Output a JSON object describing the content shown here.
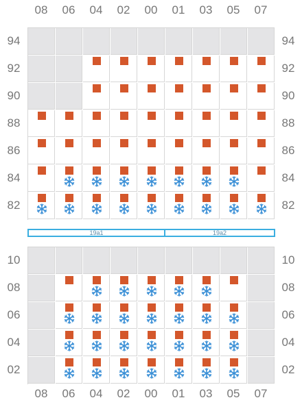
{
  "top": {
    "columns": [
      "08",
      "06",
      "04",
      "02",
      "00",
      "01",
      "03",
      "05",
      "07"
    ],
    "rows": [
      {
        "label": "94",
        "cells": [
          "x",
          "x",
          "x",
          "x",
          "x",
          "x",
          "x",
          "x",
          "x"
        ]
      },
      {
        "label": "92",
        "cells": [
          "x",
          "x",
          "s",
          "s",
          "s",
          "s",
          "s",
          "s",
          "s"
        ]
      },
      {
        "label": "90",
        "cells": [
          "x",
          "x",
          "s",
          "s",
          "s",
          "s",
          "s",
          "s",
          "s"
        ]
      },
      {
        "label": "88",
        "cells": [
          "s",
          "s",
          "s",
          "s",
          "s",
          "s",
          "s",
          "s",
          "s"
        ]
      },
      {
        "label": "86",
        "cells": [
          "s",
          "s",
          "s",
          "s",
          "s",
          "s",
          "s",
          "s",
          "s"
        ]
      },
      {
        "label": "84",
        "cells": [
          "s",
          "sf",
          "sf",
          "sf",
          "sf",
          "sf",
          "sf",
          "sf",
          "s"
        ]
      },
      {
        "label": "82",
        "cells": [
          "sf",
          "sf",
          "sf",
          "sf",
          "sf",
          "sf",
          "sf",
          "sf",
          "sf"
        ]
      }
    ]
  },
  "zones": [
    {
      "label": "19a1"
    },
    {
      "label": "19a2"
    }
  ],
  "bottom": {
    "columns": [
      "08",
      "06",
      "04",
      "02",
      "00",
      "01",
      "03",
      "05",
      "07"
    ],
    "rows": [
      {
        "label": "10",
        "cells": [
          "x",
          "x",
          "x",
          "x",
          "x",
          "x",
          "x",
          "x",
          "x"
        ]
      },
      {
        "label": "08",
        "cells": [
          "x",
          "s",
          "sf",
          "sf",
          "sf",
          "sf",
          "sf",
          "s",
          "x"
        ]
      },
      {
        "label": "06",
        "cells": [
          "x",
          "sf",
          "sf",
          "sf",
          "sf",
          "sf",
          "sf",
          "sf",
          "x"
        ]
      },
      {
        "label": "04",
        "cells": [
          "x",
          "sf",
          "sf",
          "sf",
          "sf",
          "sf",
          "sf",
          "sf",
          "x"
        ]
      },
      {
        "label": "02",
        "cells": [
          "x",
          "sf",
          "sf",
          "sf",
          "sf",
          "sf",
          "sf",
          "sf",
          "x"
        ]
      }
    ]
  },
  "legend_semantics": {
    "x": "unavailable",
    "s": "square-marker",
    "sf": "square-marker-with-snowflake"
  },
  "colors": {
    "square": "#d4572b",
    "snowflake": "#3a8fd6",
    "blocked": "#e4e4e6",
    "zone_border": "#3aaee0"
  },
  "icons": {
    "square": "square-icon",
    "snowflake": "snowflake-icon"
  }
}
